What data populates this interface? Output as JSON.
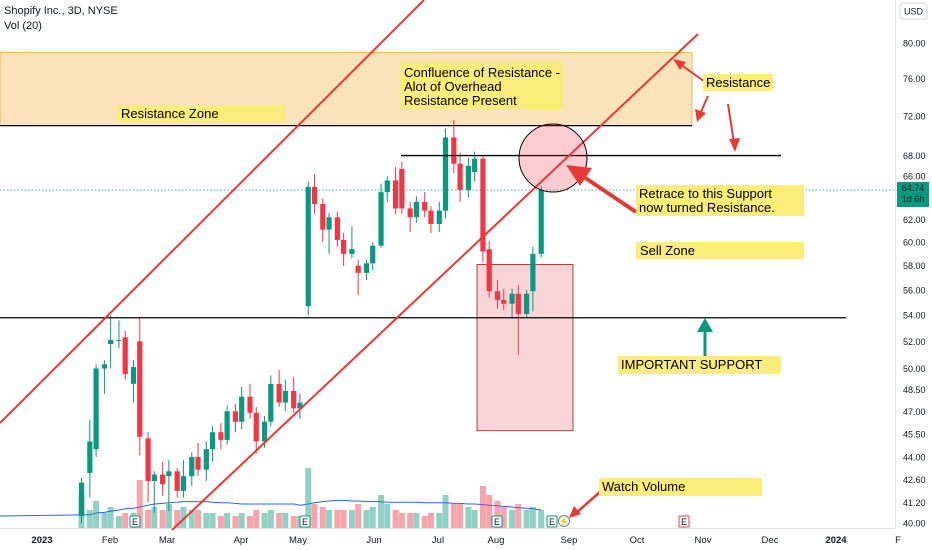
{
  "header": {
    "title": "Shopify Inc., 3D, NYSE",
    "volume_label": "Vol (20)",
    "currency_label": "USD"
  },
  "price_badge": {
    "value": "64.74",
    "countdown": "1d 6h"
  },
  "colors": {
    "up": "#089981",
    "down": "#f23645",
    "annotation_bg": "#fcec7a",
    "zone_fill": "#fce3bc",
    "sell_box": "#f9d5d8",
    "trend_line": "#e53935",
    "badge": "#089981"
  },
  "chart_data": {
    "type": "candlestick",
    "title": "Shopify Inc., 3D, NYSE",
    "x_ticks": [
      "2023",
      "Feb",
      "Mar",
      "Apr",
      "May",
      "Jun",
      "Jul",
      "Aug",
      "Sep",
      "Oct",
      "Nov",
      "Dec",
      "2024",
      "F"
    ],
    "y_scale": "log",
    "y_ticks": [
      "80.00",
      "76.00",
      "72.00",
      "68.00",
      "66.00",
      "64.00",
      "62.00",
      "60.00",
      "58.00",
      "56.00",
      "54.00",
      "52.00",
      "50.00",
      "48.50",
      "47.00",
      "45.50",
      "44.00",
      "42.60",
      "41.20",
      "40.00"
    ],
    "ylim": [
      39.8,
      81.5
    ],
    "candles": [
      {
        "date": "2023-01-20",
        "o": 40.4,
        "h": 42.7,
        "l": 40.0,
        "c": 42.4,
        "v": 0.55
      },
      {
        "date": "2023-01-24",
        "o": 43.0,
        "h": 46.4,
        "l": 41.5,
        "c": 45.0,
        "v": 0.3
      },
      {
        "date": "2023-01-27",
        "o": 44.5,
        "h": 50.3,
        "l": 44.0,
        "c": 50.0,
        "v": 0.45
      },
      {
        "date": "2023-01-31",
        "o": 50.0,
        "h": 50.6,
        "l": 48.2,
        "c": 50.3,
        "v": 0.25
      },
      {
        "date": "2023-02-03",
        "o": 51.8,
        "h": 54.0,
        "l": 50.0,
        "c": 52.1,
        "v": 0.35
      },
      {
        "date": "2023-02-07",
        "o": 52.1,
        "h": 53.6,
        "l": 51.5,
        "c": 52.1,
        "v": 0.2
      },
      {
        "date": "2023-02-10",
        "o": 52.3,
        "h": 52.8,
        "l": 49.2,
        "c": 49.6,
        "v": 0.25
      },
      {
        "date": "2023-02-14",
        "o": 48.9,
        "h": 50.6,
        "l": 47.6,
        "c": 50.1,
        "v": 0.25
      },
      {
        "date": "2023-02-17",
        "o": 52.0,
        "h": 53.8,
        "l": 44.1,
        "c": 45.3,
        "v": 0.8
      },
      {
        "date": "2023-02-21",
        "o": 45.2,
        "h": 45.6,
        "l": 41.2,
        "c": 42.5,
        "v": 0.3
      },
      {
        "date": "2023-02-24",
        "o": 42.5,
        "h": 43.1,
        "l": 40.6,
        "c": 42.9,
        "v": 0.35
      },
      {
        "date": "2023-02-28",
        "o": 42.9,
        "h": 43.7,
        "l": 41.6,
        "c": 42.3,
        "v": 0.3
      },
      {
        "date": "2023-03-03",
        "o": 42.8,
        "h": 43.8,
        "l": 40.7,
        "c": 43.1,
        "v": 0.4
      },
      {
        "date": "2023-03-07",
        "o": 43.1,
        "h": 43.3,
        "l": 41.5,
        "c": 41.9,
        "v": 0.3
      },
      {
        "date": "2023-03-10",
        "o": 41.9,
        "h": 43.8,
        "l": 41.5,
        "c": 42.8,
        "v": 0.35
      },
      {
        "date": "2023-03-14",
        "o": 42.8,
        "h": 44.3,
        "l": 42.2,
        "c": 44.0,
        "v": 0.3
      },
      {
        "date": "2023-03-17",
        "o": 44.0,
        "h": 44.9,
        "l": 42.8,
        "c": 43.2,
        "v": 0.3
      },
      {
        "date": "2023-03-21",
        "o": 43.2,
        "h": 45.0,
        "l": 42.5,
        "c": 44.5,
        "v": 0.25
      },
      {
        "date": "2023-03-24",
        "o": 44.5,
        "h": 46.0,
        "l": 43.7,
        "c": 45.6,
        "v": 0.25
      },
      {
        "date": "2023-03-28",
        "o": 45.6,
        "h": 46.2,
        "l": 44.5,
        "c": 45.1,
        "v": 0.2
      },
      {
        "date": "2023-03-31",
        "o": 45.1,
        "h": 47.4,
        "l": 44.8,
        "c": 47.0,
        "v": 0.25
      },
      {
        "date": "2023-04-04",
        "o": 47.0,
        "h": 47.5,
        "l": 45.6,
        "c": 46.3,
        "v": 0.2
      },
      {
        "date": "2023-04-07",
        "o": 46.3,
        "h": 48.7,
        "l": 45.8,
        "c": 48.0,
        "v": 0.25
      },
      {
        "date": "2023-04-11",
        "o": 48.0,
        "h": 48.9,
        "l": 46.5,
        "c": 46.9,
        "v": 0.2
      },
      {
        "date": "2023-04-14",
        "o": 46.9,
        "h": 47.3,
        "l": 44.2,
        "c": 45.0,
        "v": 0.3
      },
      {
        "date": "2023-04-18",
        "o": 45.0,
        "h": 46.7,
        "l": 44.6,
        "c": 46.3,
        "v": 0.25
      },
      {
        "date": "2023-04-21",
        "o": 46.3,
        "h": 49.5,
        "l": 46.0,
        "c": 48.9,
        "v": 0.3
      },
      {
        "date": "2023-04-25",
        "o": 48.9,
        "h": 49.9,
        "l": 47.3,
        "c": 47.6,
        "v": 0.25
      },
      {
        "date": "2023-04-28",
        "o": 47.6,
        "h": 49.2,
        "l": 47.0,
        "c": 48.4,
        "v": 0.25
      },
      {
        "date": "2023-05-02",
        "o": 48.4,
        "h": 49.4,
        "l": 46.9,
        "c": 47.2,
        "v": 0.2
      },
      {
        "date": "2023-05-05",
        "o": 47.2,
        "h": 48.2,
        "l": 46.5,
        "c": 47.6,
        "v": 0.2
      },
      {
        "date": "2023-05-09",
        "o": 54.7,
        "h": 65.5,
        "l": 54.0,
        "c": 65.0,
        "v": 1.0
      },
      {
        "date": "2023-05-12",
        "o": 65.0,
        "h": 66.2,
        "l": 62.5,
        "c": 63.4,
        "v": 0.4
      },
      {
        "date": "2023-05-16",
        "o": 63.4,
        "h": 63.9,
        "l": 60.0,
        "c": 61.1,
        "v": 0.35
      },
      {
        "date": "2023-05-19",
        "o": 61.1,
        "h": 62.6,
        "l": 59.0,
        "c": 62.2,
        "v": 0.3
      },
      {
        "date": "2023-05-23",
        "o": 62.2,
        "h": 62.7,
        "l": 59.6,
        "c": 60.2,
        "v": 0.3
      },
      {
        "date": "2023-05-26",
        "o": 60.2,
        "h": 60.8,
        "l": 58.0,
        "c": 59.0,
        "v": 0.3
      },
      {
        "date": "2023-05-30",
        "o": 59.0,
        "h": 61.4,
        "l": 58.6,
        "c": 59.4,
        "v": 0.3
      },
      {
        "date": "2023-06-02",
        "o": 58.0,
        "h": 58.5,
        "l": 55.6,
        "c": 57.4,
        "v": 0.4
      },
      {
        "date": "2023-06-06",
        "o": 57.4,
        "h": 58.5,
        "l": 56.8,
        "c": 58.2,
        "v": 0.3
      },
      {
        "date": "2023-06-09",
        "o": 58.2,
        "h": 60.0,
        "l": 57.6,
        "c": 59.7,
        "v": 0.35
      },
      {
        "date": "2023-06-13",
        "o": 59.7,
        "h": 65.3,
        "l": 59.5,
        "c": 64.5,
        "v": 0.55
      },
      {
        "date": "2023-06-16",
        "o": 64.5,
        "h": 66.0,
        "l": 63.6,
        "c": 65.6,
        "v": 0.4
      },
      {
        "date": "2023-06-20",
        "o": 65.6,
        "h": 66.9,
        "l": 62.5,
        "c": 63.0,
        "v": 0.3
      },
      {
        "date": "2023-06-23",
        "o": 66.7,
        "h": 67.4,
        "l": 62.5,
        "c": 63.0,
        "v": 0.25
      },
      {
        "date": "2023-06-27",
        "o": 63.0,
        "h": 63.6,
        "l": 60.9,
        "c": 62.2,
        "v": 0.25
      },
      {
        "date": "2023-06-30",
        "o": 62.2,
        "h": 64.1,
        "l": 61.7,
        "c": 63.6,
        "v": 0.25
      },
      {
        "date": "2023-07-04",
        "o": 63.6,
        "h": 64.5,
        "l": 62.2,
        "c": 62.8,
        "v": 0.2
      },
      {
        "date": "2023-07-07",
        "o": 62.8,
        "h": 63.2,
        "l": 60.8,
        "c": 61.6,
        "v": 0.25
      },
      {
        "date": "2023-07-11",
        "o": 61.6,
        "h": 63.6,
        "l": 60.9,
        "c": 62.8,
        "v": 0.25
      },
      {
        "date": "2023-07-14",
        "o": 62.8,
        "h": 70.7,
        "l": 62.1,
        "c": 69.8,
        "v": 0.55
      },
      {
        "date": "2023-07-18",
        "o": 69.8,
        "h": 71.6,
        "l": 66.3,
        "c": 67.2,
        "v": 0.4
      },
      {
        "date": "2023-07-21",
        "o": 67.2,
        "h": 68.3,
        "l": 63.6,
        "c": 64.7,
        "v": 0.4
      },
      {
        "date": "2023-07-25",
        "o": 64.7,
        "h": 67.8,
        "l": 64.0,
        "c": 67.0,
        "v": 0.35
      },
      {
        "date": "2023-07-28",
        "o": 66.4,
        "h": 68.4,
        "l": 65.5,
        "c": 67.7,
        "v": 0.3
      },
      {
        "date": "2023-08-01",
        "o": 67.7,
        "h": 68.0,
        "l": 58.3,
        "c": 59.2,
        "v": 0.7
      },
      {
        "date": "2023-08-04",
        "o": 59.4,
        "h": 60.1,
        "l": 55.4,
        "c": 55.9,
        "v": 0.55
      },
      {
        "date": "2023-08-08",
        "o": 55.9,
        "h": 56.8,
        "l": 54.5,
        "c": 55.2,
        "v": 0.45
      },
      {
        "date": "2023-08-11",
        "o": 55.2,
        "h": 56.1,
        "l": 54.4,
        "c": 54.9,
        "v": 0.35
      },
      {
        "date": "2023-08-15",
        "o": 54.9,
        "h": 56.1,
        "l": 53.7,
        "c": 55.7,
        "v": 0.3
      },
      {
        "date": "2023-08-18",
        "o": 55.7,
        "h": 56.4,
        "l": 51.0,
        "c": 54.1,
        "v": 0.4
      },
      {
        "date": "2023-08-22",
        "o": 54.1,
        "h": 56.0,
        "l": 53.8,
        "c": 55.7,
        "v": 0.3
      },
      {
        "date": "2023-08-25",
        "o": 55.9,
        "h": 59.6,
        "l": 54.3,
        "c": 59.0,
        "v": 0.35
      },
      {
        "date": "2023-08-29",
        "o": 59.0,
        "h": 65.1,
        "l": 58.7,
        "c": 64.7,
        "v": 0.3
      }
    ],
    "volume_ma": [
      0.2,
      0.22,
      0.25,
      0.26,
      0.28,
      0.3,
      0.32,
      0.33,
      0.35,
      0.38,
      0.4,
      0.41,
      0.42,
      0.43,
      0.44,
      0.44,
      0.44,
      0.44,
      0.43,
      0.42,
      0.42,
      0.41,
      0.4,
      0.4,
      0.4,
      0.4,
      0.4,
      0.4,
      0.4,
      0.4,
      0.38,
      0.4,
      0.42,
      0.44,
      0.45,
      0.46,
      0.46,
      0.45,
      0.45,
      0.44,
      0.44,
      0.44,
      0.43,
      0.43,
      0.43,
      0.43,
      0.43,
      0.42,
      0.42,
      0.42,
      0.42,
      0.41,
      0.41,
      0.4,
      0.4,
      0.39,
      0.38,
      0.37,
      0.36,
      0.35,
      0.34,
      0.33,
      0.32,
      0.3
    ],
    "resistance_zone": {
      "from": 71.0,
      "to": 78.9
    },
    "support_line": 53.8,
    "resistance_line": 68.0
  },
  "annotations": {
    "confluence": [
      "Confluence of Resistance -",
      "Alot of Overhead",
      "Resistance Present"
    ],
    "resistance_zone": "Resistance Zone",
    "resistance": "Resistance",
    "retrace": [
      "Retrace to this Support",
      "now turned Resistance."
    ],
    "sell_zone": "Sell Zone",
    "important_support": "IMPORTANT SUPPORT",
    "watch_volume": "Watch Volume"
  },
  "event_markers": [
    "E",
    "E",
    "E",
    "E",
    "E"
  ]
}
